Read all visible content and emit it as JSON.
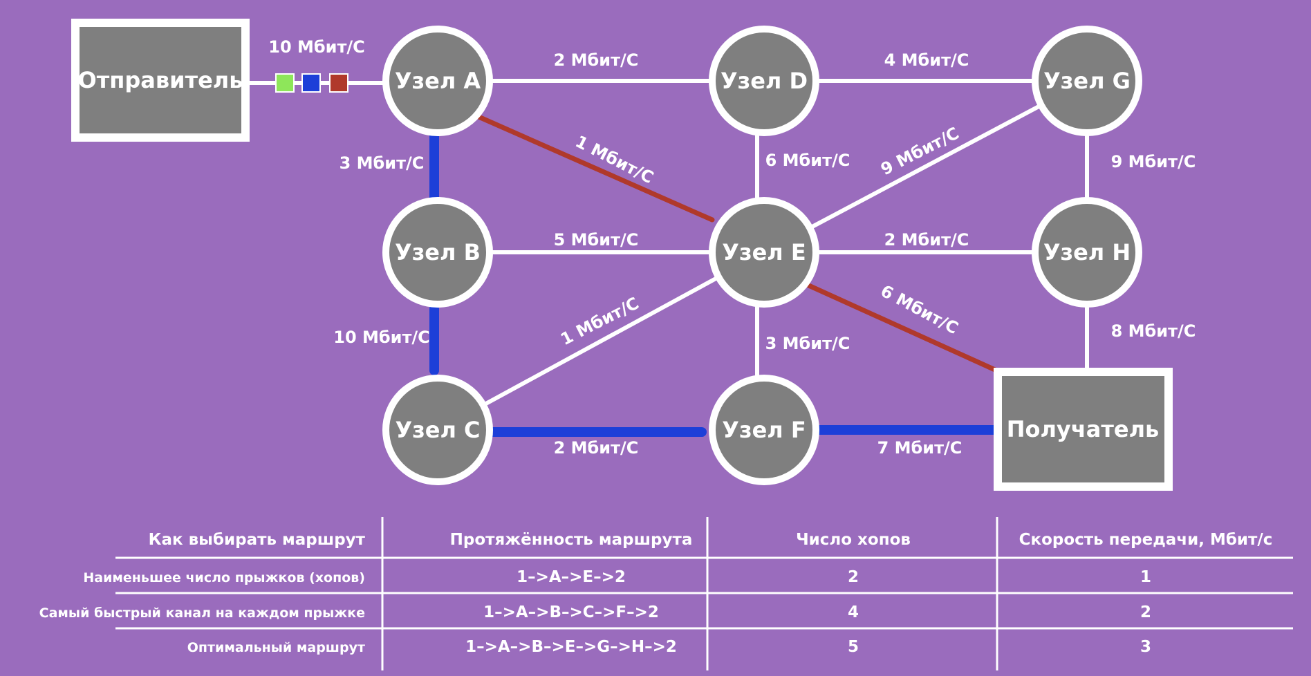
{
  "colors": {
    "background": "#9a6cbd",
    "node_fill": "#7f7f7f",
    "link": "#ffffff",
    "path_fastest": "#1d3fd8",
    "path_fewest_hops": "#b0392b",
    "packet_green": "#8ee65a",
    "packet_blue": "#1d3fd8",
    "packet_red": "#b0392b"
  },
  "sender": {
    "label": "Отправитель"
  },
  "receiver": {
    "label": "Получатель"
  },
  "nodes": [
    {
      "id": "A",
      "label": "Узел A"
    },
    {
      "id": "B",
      "label": "Узел B"
    },
    {
      "id": "C",
      "label": "Узел C"
    },
    {
      "id": "D",
      "label": "Узел D"
    },
    {
      "id": "E",
      "label": "Узел E"
    },
    {
      "id": "F",
      "label": "Узел F"
    },
    {
      "id": "G",
      "label": "Узел G"
    },
    {
      "id": "H",
      "label": "Узел H"
    }
  ],
  "links": [
    {
      "from": "S",
      "to": "A",
      "label": "10 Мбит/С",
      "style": "packets"
    },
    {
      "from": "A",
      "to": "D",
      "label": "2 Мбит/С",
      "style": "normal"
    },
    {
      "from": "D",
      "to": "G",
      "label": "4 Мбит/С",
      "style": "normal"
    },
    {
      "from": "A",
      "to": "B",
      "label": "3 Мбит/С",
      "style": "fastest"
    },
    {
      "from": "A",
      "to": "E",
      "label": "1 Мбит/С",
      "style": "fewest"
    },
    {
      "from": "D",
      "to": "E",
      "label": "6 Мбит/С",
      "style": "normal"
    },
    {
      "from": "E",
      "to": "G",
      "label": "9 Мбит/С",
      "style": "normal"
    },
    {
      "from": "G",
      "to": "H",
      "label": "9 Мбит/С",
      "style": "normal"
    },
    {
      "from": "B",
      "to": "E",
      "label": "5 Мбит/С",
      "style": "normal"
    },
    {
      "from": "E",
      "to": "H",
      "label": "2 Мбит/С",
      "style": "normal"
    },
    {
      "from": "B",
      "to": "C",
      "label": "10 Мбит/С",
      "style": "fastest"
    },
    {
      "from": "C",
      "to": "E",
      "label": "1 Мбит/С",
      "style": "normal"
    },
    {
      "from": "E",
      "to": "F",
      "label": "3 Мбит/С",
      "style": "normal"
    },
    {
      "from": "E",
      "to": "R",
      "label": "6 Мбит/С",
      "style": "fewest"
    },
    {
      "from": "H",
      "to": "R",
      "label": "8 Мбит/С",
      "style": "normal"
    },
    {
      "from": "C",
      "to": "F",
      "label": "2 Мбит/С",
      "style": "fastest"
    },
    {
      "from": "F",
      "to": "R",
      "label": "7 Мбит/С",
      "style": "fastest"
    }
  ],
  "table": {
    "headers": [
      "Как выбирать маршрут",
      "Протяжённость маршрута",
      "Число хопов",
      "Скорость передачи, Мбит/с"
    ],
    "rows": [
      [
        "Наименьшее число прыжков (хопов)",
        "1–>A–>E–>2",
        "2",
        "1"
      ],
      [
        "Самый быстрый канал на каждом прыжке",
        "1–>A–>B–>C–>F–>2",
        "4",
        "2"
      ],
      [
        "Оптимальный маршрут",
        "1–>A–>B–>E–>G–>H–>2",
        "5",
        "3"
      ]
    ]
  }
}
